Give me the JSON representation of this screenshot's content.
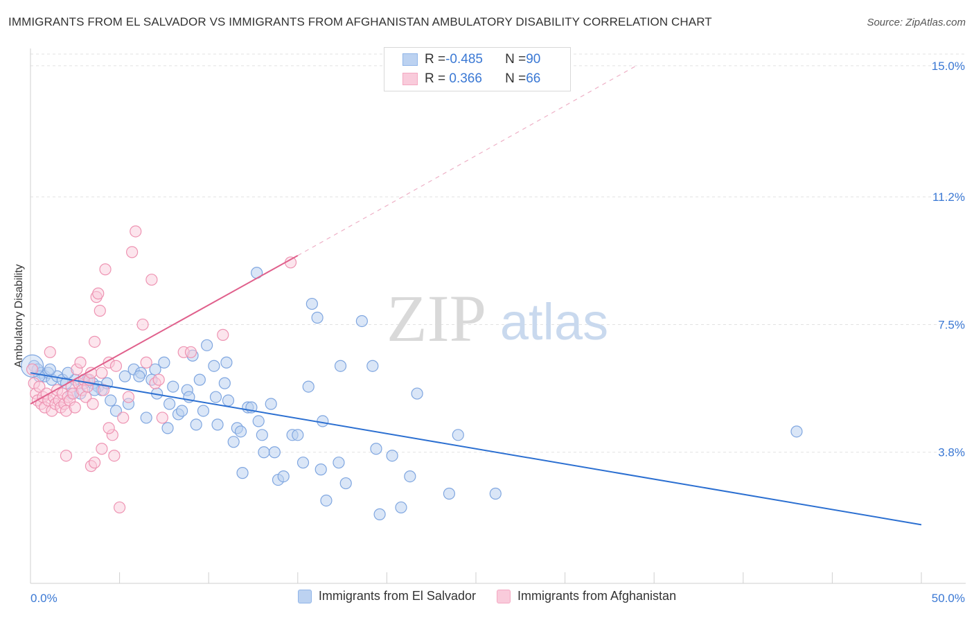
{
  "title": "IMMIGRANTS FROM EL SALVADOR VS IMMIGRANTS FROM AFGHANISTAN AMBULATORY DISABILITY CORRELATION CHART",
  "source": "Source: ZipAtlas.com",
  "watermark": {
    "zip": "ZIP",
    "atlas": "atlas"
  },
  "legend": {
    "rows": [
      {
        "r_label": "R = ",
        "r_value": "-0.485",
        "n_label": "N = ",
        "n_value": "90"
      },
      {
        "r_label": "R = ",
        "r_value": " 0.366",
        "n_label": "N = ",
        "n_value": "66"
      }
    ]
  },
  "chart_data": {
    "type": "scatter",
    "title": "IMMIGRANTS FROM EL SALVADOR VS IMMIGRANTS FROM AFGHANISTAN AMBULATORY DISABILITY CORRELATION CHART",
    "xlabel": "",
    "ylabel": "Ambulatory Disability",
    "xlim": [
      0,
      50
    ],
    "ylim": [
      0,
      15.5
    ],
    "x_tick_labels": [
      "0.0%",
      "50.0%"
    ],
    "y_ticks": [
      3.8,
      7.5,
      11.2,
      15.0
    ],
    "y_tick_labels": [
      "3.8%",
      "7.5%",
      "11.2%",
      "15.0%"
    ],
    "grid": "horizontal dashed",
    "legend_position": "top-center and bottom",
    "series": [
      {
        "name": "Immigrants from El Salvador",
        "color": "#8fb4e8",
        "line_color": "#2b6fd1",
        "trend": {
          "x": [
            0,
            50
          ],
          "y": [
            6.1,
            1.7
          ],
          "style": "solid"
        },
        "points": [
          [
            0.2,
            6.3
          ],
          [
            0.4,
            6.2
          ],
          [
            0.6,
            6.1
          ],
          [
            0.8,
            6.0
          ],
          [
            1.0,
            6.1
          ],
          [
            1.2,
            5.9
          ],
          [
            1.5,
            6.0
          ],
          [
            1.8,
            5.9
          ],
          [
            2.0,
            5.8
          ],
          [
            2.3,
            5.5
          ],
          [
            2.5,
            5.9
          ],
          [
            2.8,
            5.5
          ],
          [
            3.0,
            5.8
          ],
          [
            3.2,
            5.9
          ],
          [
            3.5,
            5.8
          ],
          [
            3.8,
            5.7
          ],
          [
            4.0,
            5.6
          ],
          [
            4.3,
            5.8
          ],
          [
            4.5,
            5.3
          ],
          [
            4.8,
            5.0
          ],
          [
            5.3,
            6.0
          ],
          [
            5.5,
            5.2
          ],
          [
            5.8,
            6.2
          ],
          [
            6.2,
            6.1
          ],
          [
            6.5,
            4.8
          ],
          [
            6.8,
            5.9
          ],
          [
            7.1,
            5.5
          ],
          [
            7.0,
            6.2
          ],
          [
            7.5,
            6.4
          ],
          [
            7.7,
            4.5
          ],
          [
            7.8,
            5.2
          ],
          [
            8.0,
            5.7
          ],
          [
            8.3,
            4.9
          ],
          [
            8.5,
            5.0
          ],
          [
            8.8,
            5.6
          ],
          [
            8.9,
            5.4
          ],
          [
            9.1,
            6.6
          ],
          [
            9.3,
            4.6
          ],
          [
            9.5,
            5.9
          ],
          [
            9.7,
            5.0
          ],
          [
            9.9,
            6.9
          ],
          [
            10.3,
            6.3
          ],
          [
            10.4,
            5.4
          ],
          [
            10.5,
            4.6
          ],
          [
            11.0,
            6.4
          ],
          [
            11.1,
            5.3
          ],
          [
            11.4,
            4.1
          ],
          [
            11.6,
            4.5
          ],
          [
            11.8,
            4.4
          ],
          [
            11.9,
            3.2
          ],
          [
            12.2,
            5.1
          ],
          [
            12.4,
            5.1
          ],
          [
            12.7,
            9.0
          ],
          [
            12.8,
            4.7
          ],
          [
            13.0,
            4.3
          ],
          [
            13.1,
            3.8
          ],
          [
            13.5,
            5.2
          ],
          [
            13.7,
            3.8
          ],
          [
            13.9,
            3.0
          ],
          [
            14.2,
            3.1
          ],
          [
            14.7,
            4.3
          ],
          [
            15.0,
            4.3
          ],
          [
            15.3,
            3.5
          ],
          [
            15.6,
            5.7
          ],
          [
            15.8,
            8.1
          ],
          [
            16.1,
            7.7
          ],
          [
            16.3,
            3.3
          ],
          [
            16.4,
            4.7
          ],
          [
            16.6,
            2.4
          ],
          [
            17.3,
            3.5
          ],
          [
            17.4,
            6.3
          ],
          [
            17.7,
            2.9
          ],
          [
            18.6,
            7.6
          ],
          [
            19.2,
            6.3
          ],
          [
            19.4,
            3.9
          ],
          [
            19.6,
            2.0
          ],
          [
            20.3,
            3.7
          ],
          [
            20.8,
            2.2
          ],
          [
            21.3,
            3.1
          ],
          [
            21.7,
            5.5
          ],
          [
            23.5,
            2.6
          ],
          [
            24.0,
            4.3
          ],
          [
            26.1,
            2.6
          ],
          [
            43.0,
            4.4
          ],
          [
            0.5,
            6.0
          ],
          [
            1.1,
            6.2
          ],
          [
            2.1,
            6.1
          ],
          [
            3.6,
            5.6
          ],
          [
            6.1,
            6.0
          ],
          [
            10.9,
            5.8
          ]
        ]
      },
      {
        "name": "Immigrants from Afghanistan",
        "color": "#f4a7c1",
        "line_color": "#e0608c",
        "trend": {
          "x": [
            0,
            15
          ],
          "y": [
            5.2,
            9.5
          ],
          "style": "solid"
        },
        "trend_extension": {
          "x": [
            15,
            34
          ],
          "y": [
            9.5,
            15.0
          ],
          "style": "dashed"
        },
        "points": [
          [
            0.1,
            6.2
          ],
          [
            0.2,
            5.8
          ],
          [
            0.3,
            5.5
          ],
          [
            0.4,
            5.3
          ],
          [
            0.5,
            5.7
          ],
          [
            0.6,
            5.2
          ],
          [
            0.7,
            5.4
          ],
          [
            0.8,
            5.1
          ],
          [
            0.9,
            5.5
          ],
          [
            1.0,
            5.3
          ],
          [
            1.1,
            6.7
          ],
          [
            1.2,
            5.0
          ],
          [
            1.3,
            5.4
          ],
          [
            1.4,
            5.2
          ],
          [
            1.5,
            5.6
          ],
          [
            1.6,
            5.3
          ],
          [
            1.7,
            5.1
          ],
          [
            1.8,
            5.5
          ],
          [
            1.9,
            5.2
          ],
          [
            2.0,
            5.0
          ],
          [
            2.1,
            5.4
          ],
          [
            2.2,
            5.3
          ],
          [
            2.3,
            5.7
          ],
          [
            2.4,
            5.5
          ],
          [
            2.5,
            5.1
          ],
          [
            2.6,
            6.2
          ],
          [
            2.7,
            5.8
          ],
          [
            2.8,
            6.4
          ],
          [
            2.9,
            5.6
          ],
          [
            3.0,
            5.9
          ],
          [
            3.1,
            5.4
          ],
          [
            3.2,
            5.7
          ],
          [
            3.3,
            5.9
          ],
          [
            3.4,
            6.1
          ],
          [
            3.5,
            5.2
          ],
          [
            3.6,
            7.0
          ],
          [
            3.7,
            8.3
          ],
          [
            3.8,
            8.4
          ],
          [
            3.9,
            7.9
          ],
          [
            4.0,
            6.1
          ],
          [
            4.1,
            5.6
          ],
          [
            4.2,
            9.1
          ],
          [
            4.4,
            6.4
          ],
          [
            4.6,
            4.3
          ],
          [
            4.7,
            3.7
          ],
          [
            4.8,
            6.3
          ],
          [
            5.0,
            2.2
          ],
          [
            5.2,
            4.8
          ],
          [
            5.5,
            5.4
          ],
          [
            5.7,
            9.6
          ],
          [
            5.9,
            10.2
          ],
          [
            6.3,
            7.5
          ],
          [
            6.5,
            6.4
          ],
          [
            6.8,
            8.8
          ],
          [
            7.0,
            5.8
          ],
          [
            7.2,
            5.9
          ],
          [
            7.4,
            4.8
          ],
          [
            8.6,
            6.7
          ],
          [
            9.0,
            6.7
          ],
          [
            10.8,
            7.2
          ],
          [
            14.6,
            9.3
          ],
          [
            2.0,
            3.7
          ],
          [
            3.4,
            3.4
          ],
          [
            3.6,
            3.5
          ],
          [
            4.0,
            3.9
          ],
          [
            4.4,
            4.5
          ]
        ]
      }
    ]
  }
}
